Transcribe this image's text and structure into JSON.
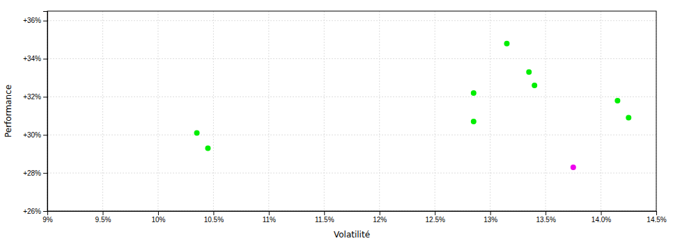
{
  "chart_data": {
    "type": "scatter",
    "xlabel": "Volatilité",
    "ylabel": "Performance",
    "x": [
      0.1035,
      0.1045,
      0.1285,
      0.1285,
      0.1315,
      0.1335,
      0.134,
      0.1375,
      0.1415,
      0.1425
    ],
    "values": [
      0.301,
      0.293,
      0.307,
      0.322,
      0.348,
      0.333,
      0.326,
      0.283,
      0.318,
      0.309
    ],
    "colors": [
      "#00ee00",
      "#00ee00",
      "#00ee00",
      "#00ee00",
      "#00ee00",
      "#00ee00",
      "#00ee00",
      "#ee00ee",
      "#00ee00",
      "#00ee00"
    ],
    "xlim": [
      0.09,
      0.145
    ],
    "ylim": [
      0.26,
      0.365
    ],
    "xticks": [
      {
        "value": 0.09,
        "label": "9%"
      },
      {
        "value": 0.095,
        "label": "9.5%"
      },
      {
        "value": 0.1,
        "label": "10%"
      },
      {
        "value": 0.105,
        "label": "10.5%"
      },
      {
        "value": 0.11,
        "label": "11%"
      },
      {
        "value": 0.115,
        "label": "11.5%"
      },
      {
        "value": 0.12,
        "label": "12%"
      },
      {
        "value": 0.125,
        "label": "12.5%"
      },
      {
        "value": 0.13,
        "label": "13%"
      },
      {
        "value": 0.135,
        "label": "13.5%"
      },
      {
        "value": 0.14,
        "label": "14.0%"
      },
      {
        "value": 0.145,
        "label": "14.5%"
      }
    ],
    "yticks": [
      {
        "value": 0.26,
        "label": "+26%"
      },
      {
        "value": 0.28,
        "label": "+28%"
      },
      {
        "value": 0.3,
        "label": "+30%"
      },
      {
        "value": 0.32,
        "label": "+32%"
      },
      {
        "value": 0.34,
        "label": "+34%"
      },
      {
        "value": 0.36,
        "label": "+36%"
      }
    ],
    "grid": true
  }
}
